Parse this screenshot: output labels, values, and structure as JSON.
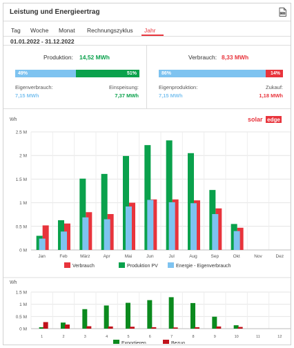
{
  "header": {
    "title": "Leistung und Energieertrag",
    "export_icon": "csv-export-icon"
  },
  "tabs": [
    {
      "label": "Tag",
      "active": false
    },
    {
      "label": "Woche",
      "active": false
    },
    {
      "label": "Monat",
      "active": false
    },
    {
      "label": "Rechnungszyklus",
      "active": false
    },
    {
      "label": "Jahr",
      "active": true
    }
  ],
  "date_range": "01.01.2022 - 31.12.2022",
  "production": {
    "label": "Produktion:",
    "value": "14,52 MWh",
    "left_pct": "49%",
    "right_pct": "51%",
    "left_fraction": 0.49,
    "sub_left_label": "Eigenverbrauch:",
    "sub_left_value": "7,15 MWh",
    "sub_right_label": "Einspeisung:",
    "sub_right_value": "7,37 MWh"
  },
  "consumption": {
    "label": "Verbrauch:",
    "value": "8,33 MWh",
    "left_pct": "86%",
    "right_pct": "14%",
    "left_fraction": 0.86,
    "sub_left_label": "Eigenproduktion:",
    "sub_left_value": "7,15 MWh",
    "sub_right_label": "Zukauf:",
    "sub_right_value": "1,18 MWh"
  },
  "colors": {
    "blue": "#7ec3f0",
    "green": "#0aa14c",
    "red": "#e8343c",
    "dark_green": "#0b8a1e",
    "dark_red": "#c0121b"
  },
  "brand": {
    "text_solar": "solar",
    "text_edge": "edge"
  },
  "chart_data": [
    {
      "type": "bar",
      "ylabel": "Wh",
      "ylim": [
        0,
        2500000
      ],
      "yticks": [
        "0 M",
        "0.5 M",
        "1 M",
        "1.5 M",
        "2 M",
        "2.5 M"
      ],
      "categories": [
        "Jan",
        "Feb",
        "März",
        "Apr",
        "Mai",
        "Jun",
        "Jul",
        "Aug",
        "Sep",
        "Okt",
        "Nov",
        "Dez"
      ],
      "series": [
        {
          "name": "Verbrauch",
          "color": "#e8343c",
          "values": [
            520000,
            560000,
            800000,
            760000,
            1000000,
            1070000,
            1070000,
            1050000,
            880000,
            470000,
            null,
            null
          ]
        },
        {
          "name": "Produktion PV",
          "color": "#0aa14c",
          "values": [
            300000,
            630000,
            1510000,
            1610000,
            1990000,
            2220000,
            2320000,
            2050000,
            1270000,
            550000,
            null,
            null
          ]
        },
        {
          "name": "Energie - Eigenverbrauch",
          "color": "#7ec3f0",
          "values": [
            240000,
            390000,
            690000,
            650000,
            920000,
            1060000,
            1010000,
            990000,
            760000,
            400000,
            null,
            null
          ]
        }
      ],
      "grid": true,
      "legend": "bottom"
    },
    {
      "type": "bar",
      "ylabel": "Wh",
      "ylim": [
        0,
        1500000
      ],
      "yticks": [
        "0 M",
        "0.5 M",
        "1 M",
        "1.5 M"
      ],
      "categories": [
        "1",
        "2",
        "3",
        "4",
        "5",
        "6",
        "7",
        "8",
        "9",
        "10",
        "11",
        "12"
      ],
      "series": [
        {
          "name": "Exportieren",
          "color": "#0b8a1e",
          "values": [
            60000,
            250000,
            800000,
            950000,
            1060000,
            1170000,
            1290000,
            1050000,
            490000,
            140000,
            null,
            null
          ]
        },
        {
          "name": "Bezug",
          "color": "#c0121b",
          "values": [
            270000,
            170000,
            100000,
            90000,
            80000,
            60000,
            50000,
            60000,
            90000,
            70000,
            null,
            null
          ]
        }
      ],
      "grid": true,
      "legend": "bottom"
    }
  ]
}
